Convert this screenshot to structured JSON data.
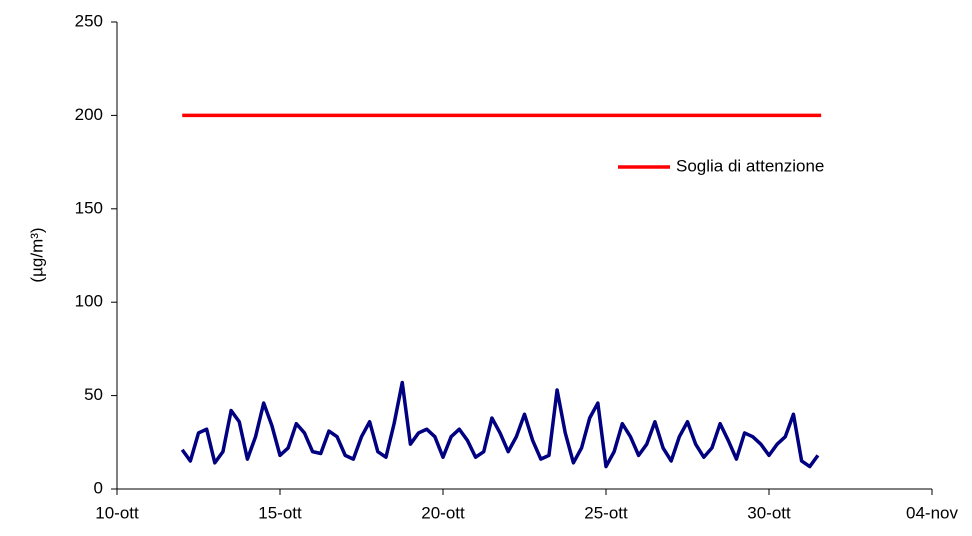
{
  "chart_data": {
    "type": "line",
    "y_label": "(µg/m³)",
    "xlim": [
      10,
      35
    ],
    "xticks": [
      {
        "value": 10,
        "label": "10-ott"
      },
      {
        "value": 15,
        "label": "15-ott"
      },
      {
        "value": 20,
        "label": "20-ott"
      },
      {
        "value": 25,
        "label": "25-ott"
      },
      {
        "value": 30,
        "label": "30-ott"
      },
      {
        "value": 35,
        "label": "04-nov"
      }
    ],
    "ylim": [
      0,
      250
    ],
    "yticks": [
      0,
      50,
      100,
      150,
      200,
      250
    ],
    "grid": false,
    "legend": "upper right",
    "series": [
      {
        "color": "#000080",
        "x": [
          12,
          12.25,
          12.5,
          12.75,
          13,
          13.25,
          13.5,
          13.75,
          14,
          14.25,
          14.5,
          14.75,
          15,
          15.25,
          15.5,
          15.75,
          16,
          16.25,
          16.5,
          16.75,
          17,
          17.25,
          17.5,
          17.75,
          18,
          18.25,
          18.5,
          18.75,
          19,
          19.25,
          19.5,
          19.75,
          20,
          20.25,
          20.5,
          20.75,
          21,
          21.25,
          21.5,
          21.75,
          22,
          22.25,
          22.5,
          22.75,
          23,
          23.25,
          23.5,
          23.75,
          24,
          24.25,
          24.5,
          24.75,
          25,
          25.25,
          25.5,
          25.75,
          26,
          26.25,
          26.5,
          26.75,
          27,
          27.25,
          27.5,
          27.75,
          28,
          28.25,
          28.5,
          28.75,
          29,
          29.25,
          29.5,
          29.75,
          30,
          30.25,
          30.5,
          30.75,
          31,
          31.25,
          31.5
        ],
        "values": [
          21,
          15,
          30,
          32,
          14,
          20,
          42,
          36,
          16,
          28,
          46,
          34,
          18,
          22,
          35,
          30,
          20,
          19,
          31,
          28,
          18,
          16,
          28,
          36,
          20,
          17,
          35,
          57,
          24,
          30,
          32,
          28,
          17,
          28,
          32,
          26,
          17,
          20,
          38,
          30,
          20,
          28,
          40,
          26,
          16,
          18,
          53,
          30,
          14,
          22,
          38,
          46,
          12,
          20,
          35,
          28,
          18,
          24,
          36,
          22,
          15,
          28,
          36,
          24,
          17,
          22,
          35,
          26,
          16,
          30,
          28,
          24,
          18,
          24,
          28,
          40,
          15,
          12,
          18
        ]
      },
      {
        "name": "Soglia di attenzione",
        "color": "#ff0000",
        "x": [
          12,
          31.6
        ],
        "values": [
          200,
          200
        ]
      }
    ]
  }
}
